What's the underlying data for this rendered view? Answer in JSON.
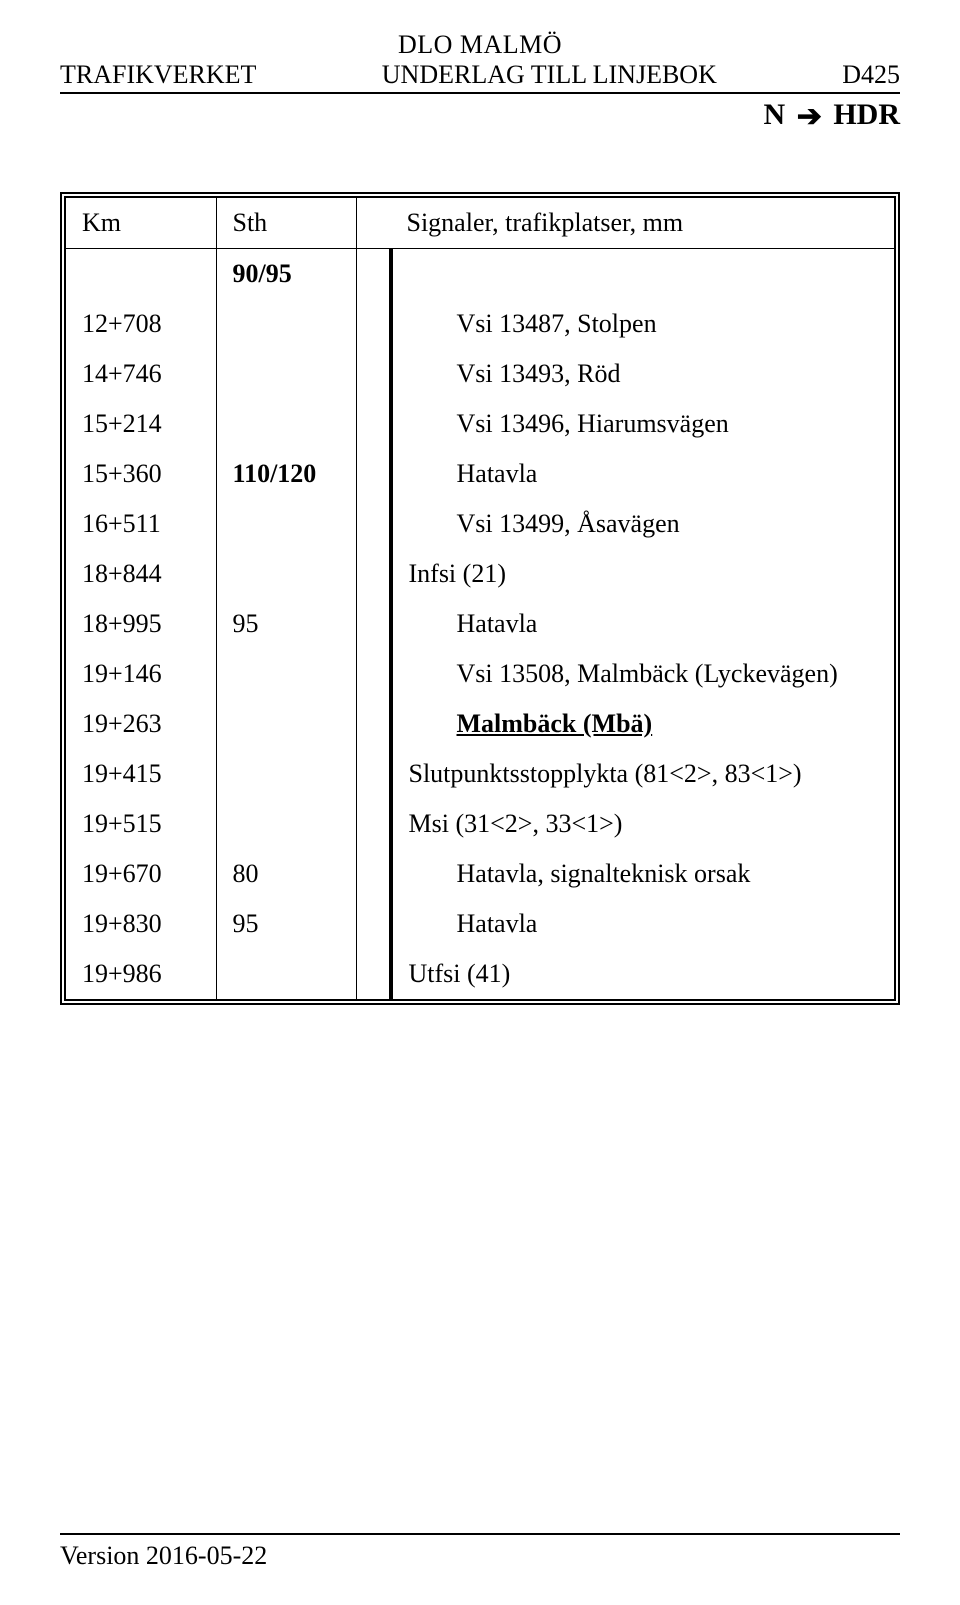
{
  "header": {
    "top_center": "DLO MALMÖ",
    "left": "TRAFIKVERKET",
    "center": "UNDERLAG TILL LINJEBOK",
    "right": "D425",
    "sub_left": "N",
    "sub_right": "HDR"
  },
  "table": {
    "columns": {
      "km": "Km",
      "sth": "Sth",
      "sig": "Signaler, trafikplatser, mm"
    },
    "rows": [
      {
        "km": "",
        "sth": "90/95",
        "sig": "",
        "sth_bold": true
      },
      {
        "km": "12+708",
        "sth": "",
        "sig": "Vsi 13487, Stolpen",
        "indent": true
      },
      {
        "km": "14+746",
        "sth": "",
        "sig": "Vsi 13493, Röd",
        "indent": true
      },
      {
        "km": "15+214",
        "sth": "",
        "sig": "Vsi 13496, Hiarumsvägen",
        "indent": true
      },
      {
        "km": "15+360",
        "sth": "110/120",
        "sig": "Hatavla",
        "indent": true,
        "sth_bold": true
      },
      {
        "km": "16+511",
        "sth": "",
        "sig": "Vsi 13499, Åsavägen",
        "indent": true
      },
      {
        "km": "18+844",
        "sth": "",
        "sig": "Infsi (21)"
      },
      {
        "km": "18+995",
        "sth": "95",
        "sig": "Hatavla",
        "indent": true
      },
      {
        "km": "19+146",
        "sth": "",
        "sig": "Vsi 13508, Malmbäck (Lyckevägen)",
        "indent": true
      },
      {
        "km": "19+263",
        "sth": "",
        "sig": "Malmbäck (Mbä)",
        "indent": true,
        "bold": true,
        "underline": true
      },
      {
        "km": "19+415",
        "sth": "",
        "sig": "Slutpunktsstopplykta (81<2>, 83<1>)"
      },
      {
        "km": "19+515",
        "sth": "",
        "sig": "Msi (31<2>, 33<1>)"
      },
      {
        "km": "19+670",
        "sth": "80",
        "sig": "Hatavla, signalteknisk orsak",
        "indent": true
      },
      {
        "km": "19+830",
        "sth": "95",
        "sig": "Hatavla",
        "indent": true
      },
      {
        "km": "19+986",
        "sth": "",
        "sig": "Utfsi (41)"
      }
    ]
  },
  "footer": {
    "text": "Version 2016-05-22"
  }
}
